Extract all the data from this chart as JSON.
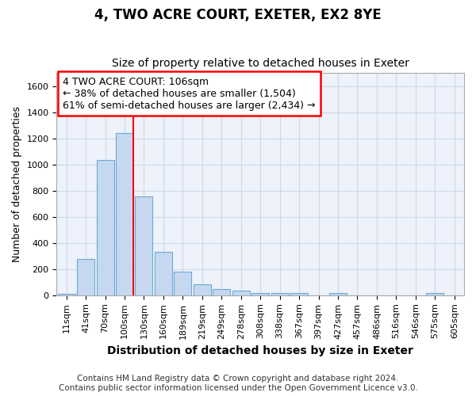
{
  "title": "4, TWO ACRE COURT, EXETER, EX2 8YE",
  "subtitle": "Size of property relative to detached houses in Exeter",
  "xlabel": "Distribution of detached houses by size in Exeter",
  "ylabel": "Number of detached properties",
  "bar_color": "#c5d8f0",
  "bar_edge_color": "#6aaad4",
  "axes_facecolor": "#edf2fb",
  "fig_facecolor": "#ffffff",
  "grid_color": "#d0d8e8",
  "categories": [
    "11sqm",
    "41sqm",
    "70sqm",
    "100sqm",
    "130sqm",
    "160sqm",
    "189sqm",
    "219sqm",
    "249sqm",
    "278sqm",
    "308sqm",
    "338sqm",
    "367sqm",
    "397sqm",
    "427sqm",
    "457sqm",
    "486sqm",
    "516sqm",
    "546sqm",
    "575sqm",
    "605sqm"
  ],
  "values": [
    10,
    278,
    1035,
    1240,
    755,
    330,
    180,
    83,
    47,
    33,
    20,
    15,
    15,
    0,
    15,
    0,
    0,
    0,
    0,
    15,
    0
  ],
  "ylim": [
    0,
    1700
  ],
  "yticks": [
    0,
    200,
    400,
    600,
    800,
    1000,
    1200,
    1400,
    1600
  ],
  "property_line_color": "red",
  "property_line_index": 3,
  "annotation_text_line1": "4 TWO ACRE COURT: 106sqm",
  "annotation_text_line2": "← 38% of detached houses are smaller (1,504)",
  "annotation_text_line3": "61% of semi-detached houses are larger (2,434) →",
  "annotation_box_facecolor": "white",
  "annotation_box_edgecolor": "red",
  "footer_line1": "Contains HM Land Registry data © Crown copyright and database right 2024.",
  "footer_line2": "Contains public sector information licensed under the Open Government Licence v3.0.",
  "title_fontsize": 12,
  "subtitle_fontsize": 10,
  "xlabel_fontsize": 10,
  "ylabel_fontsize": 9,
  "tick_fontsize": 8,
  "annotation_fontsize": 9,
  "footer_fontsize": 7.5
}
